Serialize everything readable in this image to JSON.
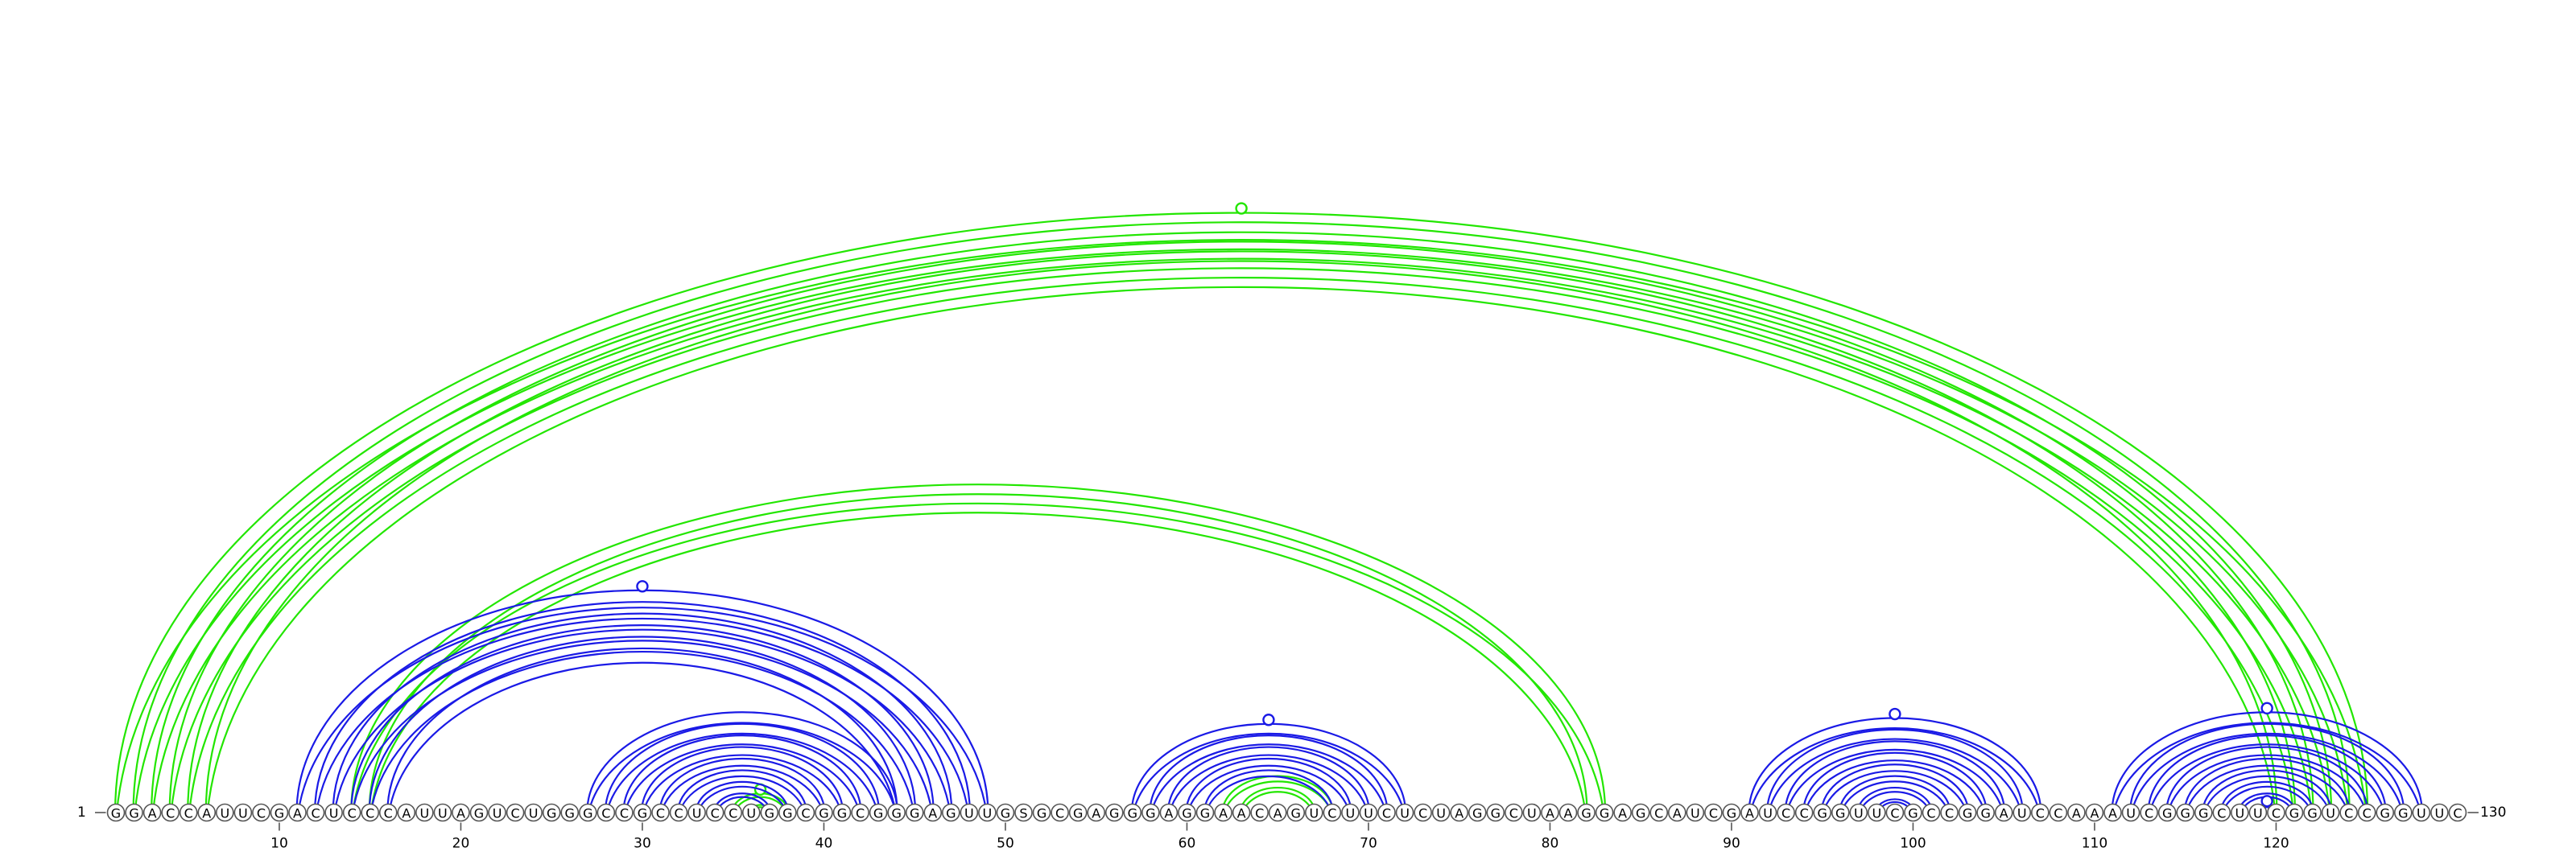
{
  "sequence": "GGACCAUUCGACUCCCAUUAGUCUGGGCCGCCUCCUGGCGGCGGGAGUUGSGCGAGGGAGGAACAGUCUUCUCUAGGCUAAGGAGCAUCGAUCCGGUUCGCCGGAUCCAAAUCGGGCUUCGGUCCGGUUC",
  "start_label": "1",
  "end_label": "130",
  "ticks": [
    10,
    20,
    30,
    40,
    50,
    60,
    70,
    80,
    90,
    100,
    110,
    120
  ],
  "colors": {
    "blue": "#1a1ae6",
    "green": "#22e600"
  },
  "arc_groups": [
    {
      "color": "green",
      "pairs": [
        [
          1,
          125
        ],
        [
          2,
          124
        ],
        [
          3,
          123
        ],
        [
          4,
          122
        ],
        [
          5,
          121
        ],
        [
          6,
          120
        ]
      ],
      "marker": "open"
    },
    {
      "color": "green",
      "pairs": [
        [
          14,
          83
        ],
        [
          15,
          82
        ]
      ]
    },
    {
      "color": "green",
      "pairs": [
        [
          35,
          38
        ],
        [
          36,
          37
        ]
      ],
      "marker": "filled"
    },
    {
      "color": "green",
      "pairs": [
        [
          62,
          68
        ],
        [
          63,
          67
        ]
      ]
    },
    {
      "color": "blue",
      "pairs": [
        [
          11,
          49
        ],
        [
          12,
          48
        ],
        [
          13,
          47
        ],
        [
          14,
          46
        ],
        [
          15,
          45
        ],
        [
          16,
          44
        ]
      ],
      "marker": "open"
    },
    {
      "color": "blue",
      "pairs": [
        [
          27,
          44
        ],
        [
          28,
          43
        ],
        [
          29,
          42
        ],
        [
          30,
          41
        ],
        [
          31,
          40
        ],
        [
          32,
          39
        ],
        [
          33,
          38
        ],
        [
          34,
          37
        ]
      ]
    },
    {
      "color": "blue",
      "pairs": [
        [
          57,
          72
        ],
        [
          58,
          71
        ],
        [
          59,
          70
        ],
        [
          60,
          69
        ],
        [
          61,
          68
        ]
      ],
      "marker": "open"
    },
    {
      "color": "blue",
      "pairs": [
        [
          91,
          107
        ],
        [
          92,
          106
        ],
        [
          93,
          105
        ],
        [
          94,
          104
        ],
        [
          95,
          103
        ],
        [
          96,
          102
        ],
        [
          97,
          101
        ],
        [
          98,
          100
        ]
      ],
      "marker": "open"
    },
    {
      "color": "blue",
      "pairs": [
        [
          111,
          128
        ],
        [
          112,
          127
        ],
        [
          113,
          126
        ],
        [
          114,
          125
        ],
        [
          115,
          124
        ],
        [
          116,
          123
        ],
        [
          117,
          122
        ],
        [
          118,
          121
        ]
      ],
      "marker": "open"
    },
    {
      "color": "blue",
      "pairs": [
        [
          119,
          120
        ]
      ],
      "marker": "open"
    }
  ]
}
